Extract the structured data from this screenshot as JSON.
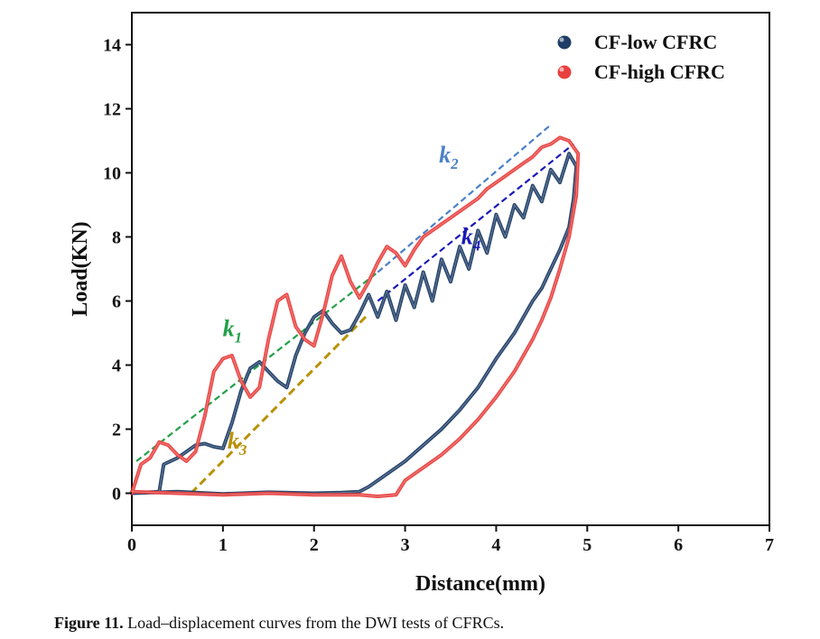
{
  "chart_data": {
    "type": "line",
    "xlabel": "Distance(mm)",
    "ylabel": "Load(KN)",
    "xlim": [
      0,
      7
    ],
    "ylim": [
      -1,
      15
    ],
    "xticks": [
      0,
      1,
      2,
      3,
      4,
      5,
      6,
      7
    ],
    "yticks": [
      0,
      2,
      4,
      6,
      8,
      10,
      12,
      14
    ],
    "grid": false,
    "legend": "top-right",
    "series": [
      {
        "name": "CF-low  CFRC",
        "color": "#1f3d66",
        "loading_x": [
          0,
          0.3,
          0.35,
          0.5,
          0.6,
          0.7,
          0.8,
          0.9,
          1.0,
          1.1,
          1.2,
          1.3,
          1.4,
          1.5,
          1.6,
          1.7,
          1.8,
          1.9,
          2.0,
          2.1,
          2.2,
          2.3,
          2.4,
          2.5,
          2.6,
          2.7,
          2.8,
          2.9,
          3.0,
          3.1,
          3.2,
          3.3,
          3.4,
          3.5,
          3.6,
          3.7,
          3.8,
          3.9,
          4.0,
          4.1,
          4.2,
          4.3,
          4.4,
          4.5,
          4.6,
          4.7,
          4.8,
          4.88
        ],
        "loading_y": [
          0,
          0.05,
          0.9,
          1.1,
          1.3,
          1.5,
          1.55,
          1.45,
          1.4,
          2.2,
          3.2,
          3.9,
          4.1,
          3.8,
          3.5,
          3.3,
          4.3,
          5.0,
          5.5,
          5.7,
          5.3,
          5.0,
          5.1,
          5.6,
          6.2,
          5.5,
          6.3,
          5.4,
          6.5,
          5.8,
          6.9,
          6.0,
          7.3,
          6.6,
          7.7,
          7.0,
          8.2,
          7.5,
          8.7,
          8.0,
          9.0,
          8.6,
          9.6,
          9.1,
          10.1,
          9.7,
          10.6,
          10.2
        ],
        "unloading_x": [
          4.88,
          4.85,
          4.8,
          4.7,
          4.6,
          4.5,
          4.4,
          4.2,
          4.0,
          3.8,
          3.6,
          3.4,
          3.2,
          3.0,
          2.8,
          2.6,
          2.5,
          2.3,
          2.0,
          1.5,
          1.0,
          0.5,
          0
        ],
        "unloading_y": [
          10.2,
          9.2,
          8.3,
          7.6,
          7.0,
          6.4,
          6.0,
          5.0,
          4.2,
          3.3,
          2.6,
          2.0,
          1.5,
          1.0,
          0.6,
          0.2,
          0.05,
          0.02,
          0.0,
          0.03,
          -0.02,
          0.05,
          0.0
        ]
      },
      {
        "name": "CF-high CFRC",
        "color": "#e8403e",
        "loading_x": [
          0,
          0.1,
          0.2,
          0.3,
          0.4,
          0.5,
          0.6,
          0.7,
          0.8,
          0.9,
          1.0,
          1.1,
          1.2,
          1.3,
          1.4,
          1.5,
          1.6,
          1.7,
          1.8,
          1.9,
          2.0,
          2.1,
          2.2,
          2.3,
          2.4,
          2.5,
          2.6,
          2.7,
          2.8,
          2.9,
          3.0,
          3.1,
          3.2,
          3.3,
          3.4,
          3.5,
          3.6,
          3.7,
          3.8,
          3.9,
          4.0,
          4.1,
          4.2,
          4.3,
          4.4,
          4.5,
          4.6,
          4.7,
          4.8,
          4.9
        ],
        "loading_y": [
          0,
          0.9,
          1.1,
          1.6,
          1.5,
          1.2,
          1.0,
          1.3,
          2.4,
          3.8,
          4.2,
          4.3,
          3.5,
          3.0,
          3.3,
          4.8,
          6.0,
          6.2,
          5.2,
          4.8,
          4.6,
          5.6,
          6.8,
          7.4,
          6.6,
          6.1,
          6.6,
          7.2,
          7.7,
          7.5,
          7.1,
          7.6,
          8.0,
          8.2,
          8.4,
          8.6,
          8.8,
          9.0,
          9.2,
          9.5,
          9.7,
          9.9,
          10.1,
          10.3,
          10.5,
          10.8,
          10.9,
          11.1,
          11.0,
          10.6
        ],
        "unloading_x": [
          4.9,
          4.88,
          4.8,
          4.7,
          4.6,
          4.5,
          4.4,
          4.2,
          4.0,
          3.8,
          3.6,
          3.4,
          3.2,
          3.0,
          2.9,
          2.7,
          2.5,
          2.0,
          1.5,
          1.0,
          0.5,
          0
        ],
        "unloading_y": [
          10.6,
          9.3,
          8.0,
          7.0,
          6.1,
          5.4,
          4.8,
          3.8,
          3.0,
          2.3,
          1.7,
          1.2,
          0.8,
          0.4,
          -0.05,
          -0.1,
          -0.05,
          -0.05,
          0.0,
          -0.05,
          0.0,
          0.05
        ]
      }
    ],
    "stiffness_lines": [
      {
        "label": "k",
        "sub": "1",
        "color": "#22a04a",
        "from": [
          0.05,
          1.0
        ],
        "to": [
          2.7,
          6.9
        ]
      },
      {
        "label": "k",
        "sub": "2",
        "color": "#4a80c8",
        "from": [
          2.7,
          6.9
        ],
        "to": [
          4.6,
          11.5
        ]
      },
      {
        "label": "k",
        "sub": "3",
        "color": "#b8920a",
        "from": [
          0.65,
          0.0
        ],
        "to": [
          2.6,
          5.6
        ]
      },
      {
        "label": "k",
        "sub": "4",
        "color": "#1a1ab8",
        "from": [
          2.7,
          6.0
        ],
        "to": [
          4.85,
          10.9
        ]
      }
    ]
  },
  "caption": {
    "label": "Figure 11.",
    "text": " Load–displacement curves from the DWI tests of CFRCs."
  }
}
